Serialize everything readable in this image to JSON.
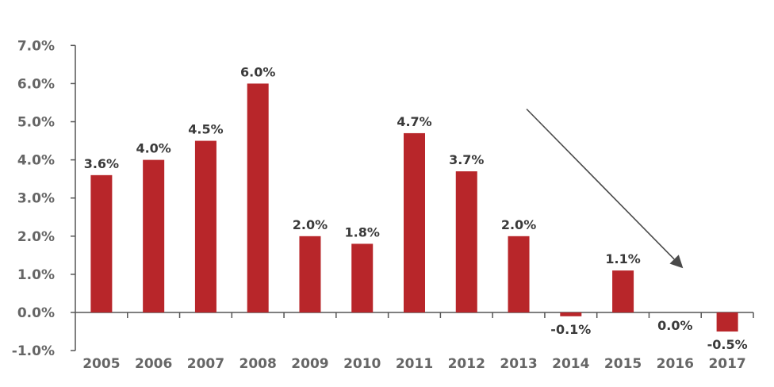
{
  "chart_data": {
    "type": "bar",
    "title": "",
    "xlabel": "",
    "ylabel": "",
    "categories": [
      "2005",
      "2006",
      "2007",
      "2008",
      "2009",
      "2010",
      "2011",
      "2012",
      "2013",
      "2014",
      "2015",
      "2016",
      "2017"
    ],
    "values": [
      3.6,
      4.0,
      4.5,
      6.0,
      2.0,
      1.8,
      4.7,
      3.7,
      2.0,
      -0.1,
      1.1,
      0.0,
      -0.5
    ],
    "data_labels": [
      "3.6%",
      "4.0%",
      "4.5%",
      "6.0%",
      "2.0%",
      "1.8%",
      "4.7%",
      "3.7%",
      "2.0%",
      "-0.1%",
      "1.1%",
      "0.0%",
      "-0.5%"
    ],
    "ylim": [
      -1.0,
      7.0
    ],
    "y_ticks": [
      7.0,
      6.0,
      5.0,
      4.0,
      3.0,
      2.0,
      1.0,
      0.0,
      -1.0
    ],
    "y_tick_labels": [
      "7.0%",
      "6.0%",
      "5.0%",
      "4.0%",
      "3.0%",
      "2.0%",
      "1.0%",
      "0.0%",
      "-1.0%"
    ],
    "grid": false,
    "legend": "none",
    "bar_color": "#B8262A",
    "annotation": {
      "type": "arrow",
      "direction": "downward trend",
      "from_category": "2013",
      "from_value": 5.0,
      "to_category": "2016",
      "to_value": 1.2
    }
  }
}
